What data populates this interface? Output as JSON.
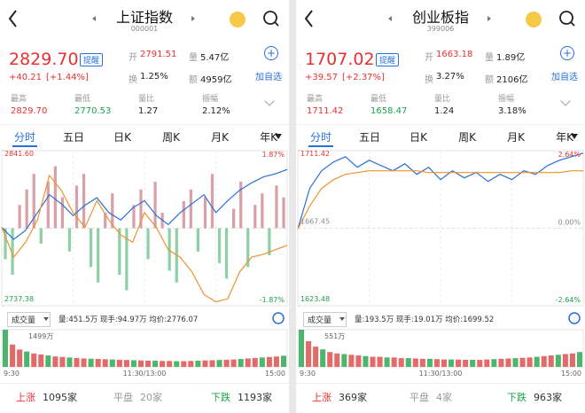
{
  "panels": [
    {
      "title": "上证指数",
      "code": "000001",
      "price": "2829.70",
      "remind": "提醒",
      "change": "+40.21",
      "pct": "[+1.44%]",
      "quotes": [
        {
          "label": "开",
          "value": "2791.51"
        },
        {
          "label": "量",
          "value": "5.47亿"
        },
        {
          "label": "换",
          "value": "1.25%"
        },
        {
          "label": "额",
          "value": "4959亿"
        }
      ],
      "add": "加自选",
      "stats": [
        {
          "label": "最高",
          "value": "2829.70"
        },
        {
          "label": "最低",
          "value": "2770.53"
        },
        {
          "label": "量比",
          "value": "1.27"
        },
        {
          "label": "振幅",
          "value": "2.12%"
        }
      ],
      "tabs": [
        "分时",
        "五日",
        "日K",
        "周K",
        "月K",
        "年K"
      ],
      "chart": {
        "ylim": [
          2737.38,
          2841.6
        ],
        "yticks": [
          {
            "value": 2841.6,
            "label": "2841.60"
          },
          {
            "value": 2737.38,
            "label": "2737.38"
          }
        ],
        "pct_labels": [
          "1.87%",
          "-1.87%"
        ],
        "lines": [
          {
            "color": "#2a6fdb",
            "values": [
              2790,
              2782,
              2788,
              2800,
              2812,
              2806,
              2798,
              2805,
              2810,
              2800,
              2795,
              2803,
              2808,
              2798,
              2792,
              2800,
              2806,
              2812,
              2800,
              2808,
              2815,
              2820,
              2824,
              2826,
              2829
            ]
          },
          {
            "color": "#f0922e",
            "values": [
              2790,
              2770,
              2780,
              2795,
              2825,
              2815,
              2800,
              2790,
              2808,
              2795,
              2785,
              2780,
              2800,
              2790,
              2775,
              2770,
              2760,
              2745,
              2740,
              2742,
              2760,
              2770,
              2772,
              2775,
              2778
            ]
          }
        ],
        "flow_lim": [
          -100,
          100
        ],
        "flow": [
          -40,
          -60,
          30,
          50,
          70,
          -20,
          60,
          80,
          40,
          -30,
          55,
          70,
          -50,
          -70,
          20,
          45,
          -60,
          -80,
          30,
          50,
          -40,
          60,
          20,
          -55,
          -70,
          35,
          50,
          -30,
          40,
          70,
          -45,
          -65,
          25,
          60,
          -50,
          30,
          45,
          -35,
          55,
          40
        ]
      },
      "indicator": "成交量",
      "vol_info": "量:451.5万 现手:94.97万 均价:2776.07",
      "vol": {
        "max_label": "1499万",
        "ylim": [
          0,
          1499
        ],
        "values": [
          1499,
          900,
          700,
          620,
          540,
          500,
          460,
          420,
          400,
          380,
          360,
          340,
          330,
          320,
          310,
          300,
          290,
          280,
          270,
          260,
          250,
          250,
          240,
          240,
          230,
          230,
          240,
          250,
          260,
          270,
          280,
          290,
          300,
          320,
          340,
          360,
          380,
          400,
          420,
          450
        ]
      },
      "times": [
        "9:30",
        "11:30/13:00",
        "15:00"
      ],
      "breadth": [
        {
          "label": "上涨",
          "value": "1095家"
        },
        {
          "label": "平盘",
          "value": "20家"
        },
        {
          "label": "下跌",
          "value": "1193家"
        }
      ]
    },
    {
      "title": "创业板指",
      "code": "399006",
      "price": "1707.02",
      "remind": "提醒",
      "change": "+39.57",
      "pct": "[+2.37%]",
      "quotes": [
        {
          "label": "开",
          "value": "1663.18"
        },
        {
          "label": "量",
          "value": "1.89亿"
        },
        {
          "label": "换",
          "value": "3.27%"
        },
        {
          "label": "额",
          "value": "2106亿"
        }
      ],
      "add": "加自选",
      "stats": [
        {
          "label": "最高",
          "value": "1711.42"
        },
        {
          "label": "最低",
          "value": "1658.47"
        },
        {
          "label": "量比",
          "value": "1.24"
        },
        {
          "label": "振幅",
          "value": "3.18%"
        }
      ],
      "tabs": [
        "分时",
        "五日",
        "日K",
        "周K",
        "月K",
        "年K"
      ],
      "chart": {
        "ylim": [
          1623.48,
          1711.42
        ],
        "yticks": [
          {
            "value": 1711.42,
            "label": "1711.42"
          },
          {
            "value": 1667.45,
            "label": "1667.45"
          },
          {
            "value": 1623.48,
            "label": "1623.48"
          }
        ],
        "pct_labels": [
          "2.64%",
          "0.00%",
          "-2.64%"
        ],
        "lines": [
          {
            "color": "#2a6fdb",
            "values": [
              1667,
              1690,
              1700,
              1705,
              1708,
              1702,
              1706,
              1703,
              1700,
              1704,
              1698,
              1702,
              1695,
              1700,
              1696,
              1699,
              1694,
              1698,
              1695,
              1700,
              1698,
              1703,
              1706,
              1708,
              1710
            ]
          },
          {
            "color": "#f0922e",
            "values": [
              1667,
              1680,
              1690,
              1695,
              1698,
              1699,
              1700,
              1700,
              1700,
              1700,
              1700,
              1699,
              1699,
              1699,
              1699,
              1699,
              1699,
              1699,
              1699,
              1699,
              1699,
              1699,
              1699,
              1700,
              1700
            ]
          }
        ]
      },
      "indicator": "成交量",
      "vol_info": "量:193.5万 现手:19.01万 均价:1699.52",
      "vol": {
        "max_label": "551万",
        "ylim": [
          0,
          551
        ],
        "values": [
          551,
          380,
          300,
          260,
          220,
          200,
          190,
          180,
          170,
          160,
          150,
          150,
          140,
          140,
          130,
          130,
          125,
          120,
          120,
          115,
          110,
          110,
          108,
          105,
          105,
          104,
          110,
          115,
          120,
          125,
          130,
          135,
          140,
          150,
          160,
          170,
          180,
          190,
          200,
          220
        ]
      },
      "times": [
        "9:30",
        "11:30/13:00",
        "15:00"
      ],
      "breadth": [
        {
          "label": "上涨",
          "value": "369家"
        },
        {
          "label": "平盘",
          "value": "4家"
        },
        {
          "label": "下跌",
          "value": "963家"
        }
      ]
    }
  ]
}
